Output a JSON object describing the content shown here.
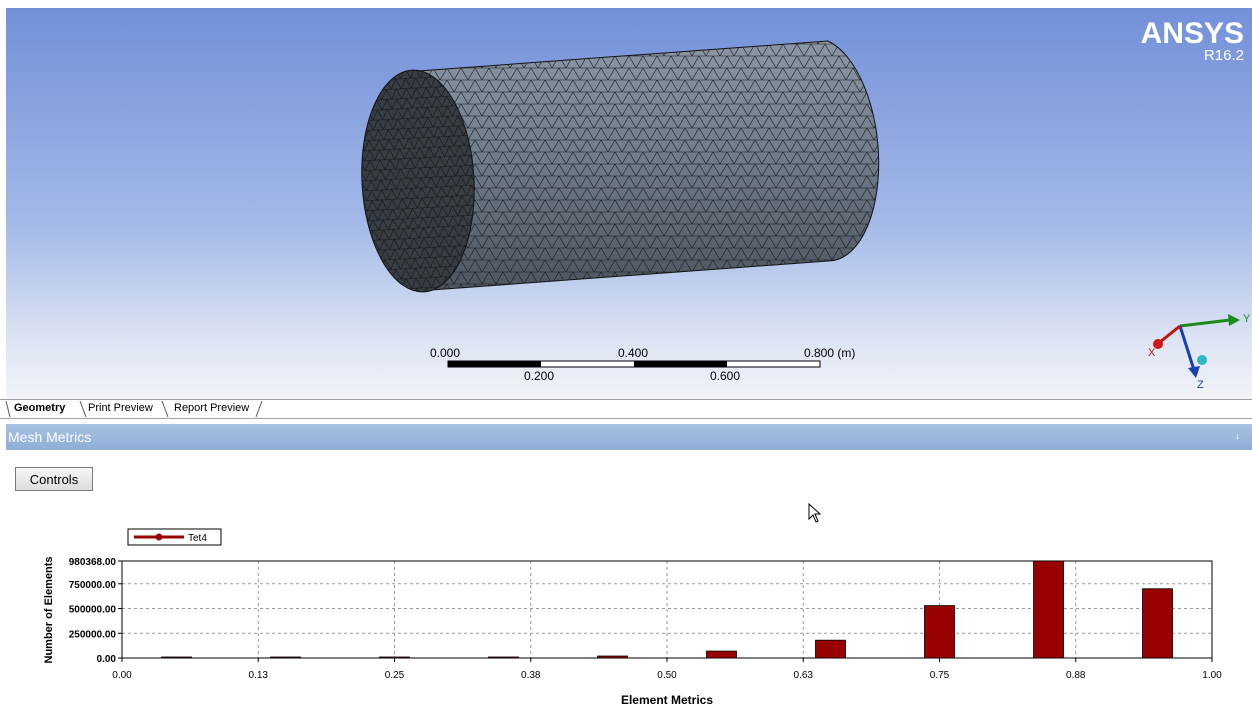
{
  "branding": {
    "name": "ANSYS",
    "version": "R16.2"
  },
  "scale_bar": {
    "top_labels": [
      "0.000",
      "0.400",
      "0.800 (m)"
    ],
    "bottom_labels": [
      "0.200",
      "0.600"
    ]
  },
  "triad": {
    "x_label": "X",
    "y_label": "Y",
    "z_label": "Z"
  },
  "tabs": [
    {
      "label": "Geometry",
      "active": true
    },
    {
      "label": "Print Preview",
      "active": false
    },
    {
      "label": "Report Preview",
      "active": false
    }
  ],
  "panel": {
    "title": "Mesh Metrics",
    "pin_icon": "pin-icon"
  },
  "controls": {
    "label": "Controls"
  },
  "colors": {
    "bar": "#990000",
    "viewport_top": "#7390d9",
    "viewport_bottom": "#f2f4f8"
  },
  "chart_data": {
    "type": "bar",
    "legend": [
      "Tet4"
    ],
    "legend_placement": "top-left",
    "xlabel": "Element Metrics",
    "ylabel": "Number of Elements",
    "xlim": [
      0,
      1
    ],
    "ylim": [
      0,
      980368
    ],
    "x_ticks": [
      "0.00",
      "0.13",
      "0.25",
      "0.38",
      "0.50",
      "0.63",
      "0.75",
      "0.88",
      "1.00"
    ],
    "y_ticks": [
      "0.00",
      "250000.00",
      "500000.00",
      "750000.00",
      "980368.00"
    ],
    "y_tick_values": [
      0,
      250000,
      500000,
      750000,
      980368
    ],
    "grid": true,
    "series": [
      {
        "name": "Tet4",
        "x": [
          0.05,
          0.15,
          0.25,
          0.35,
          0.45,
          0.55,
          0.65,
          0.75,
          0.85,
          0.95
        ],
        "values": [
          2000,
          3000,
          4000,
          6000,
          20000,
          70000,
          180000,
          530000,
          980368,
          700000
        ]
      }
    ]
  }
}
